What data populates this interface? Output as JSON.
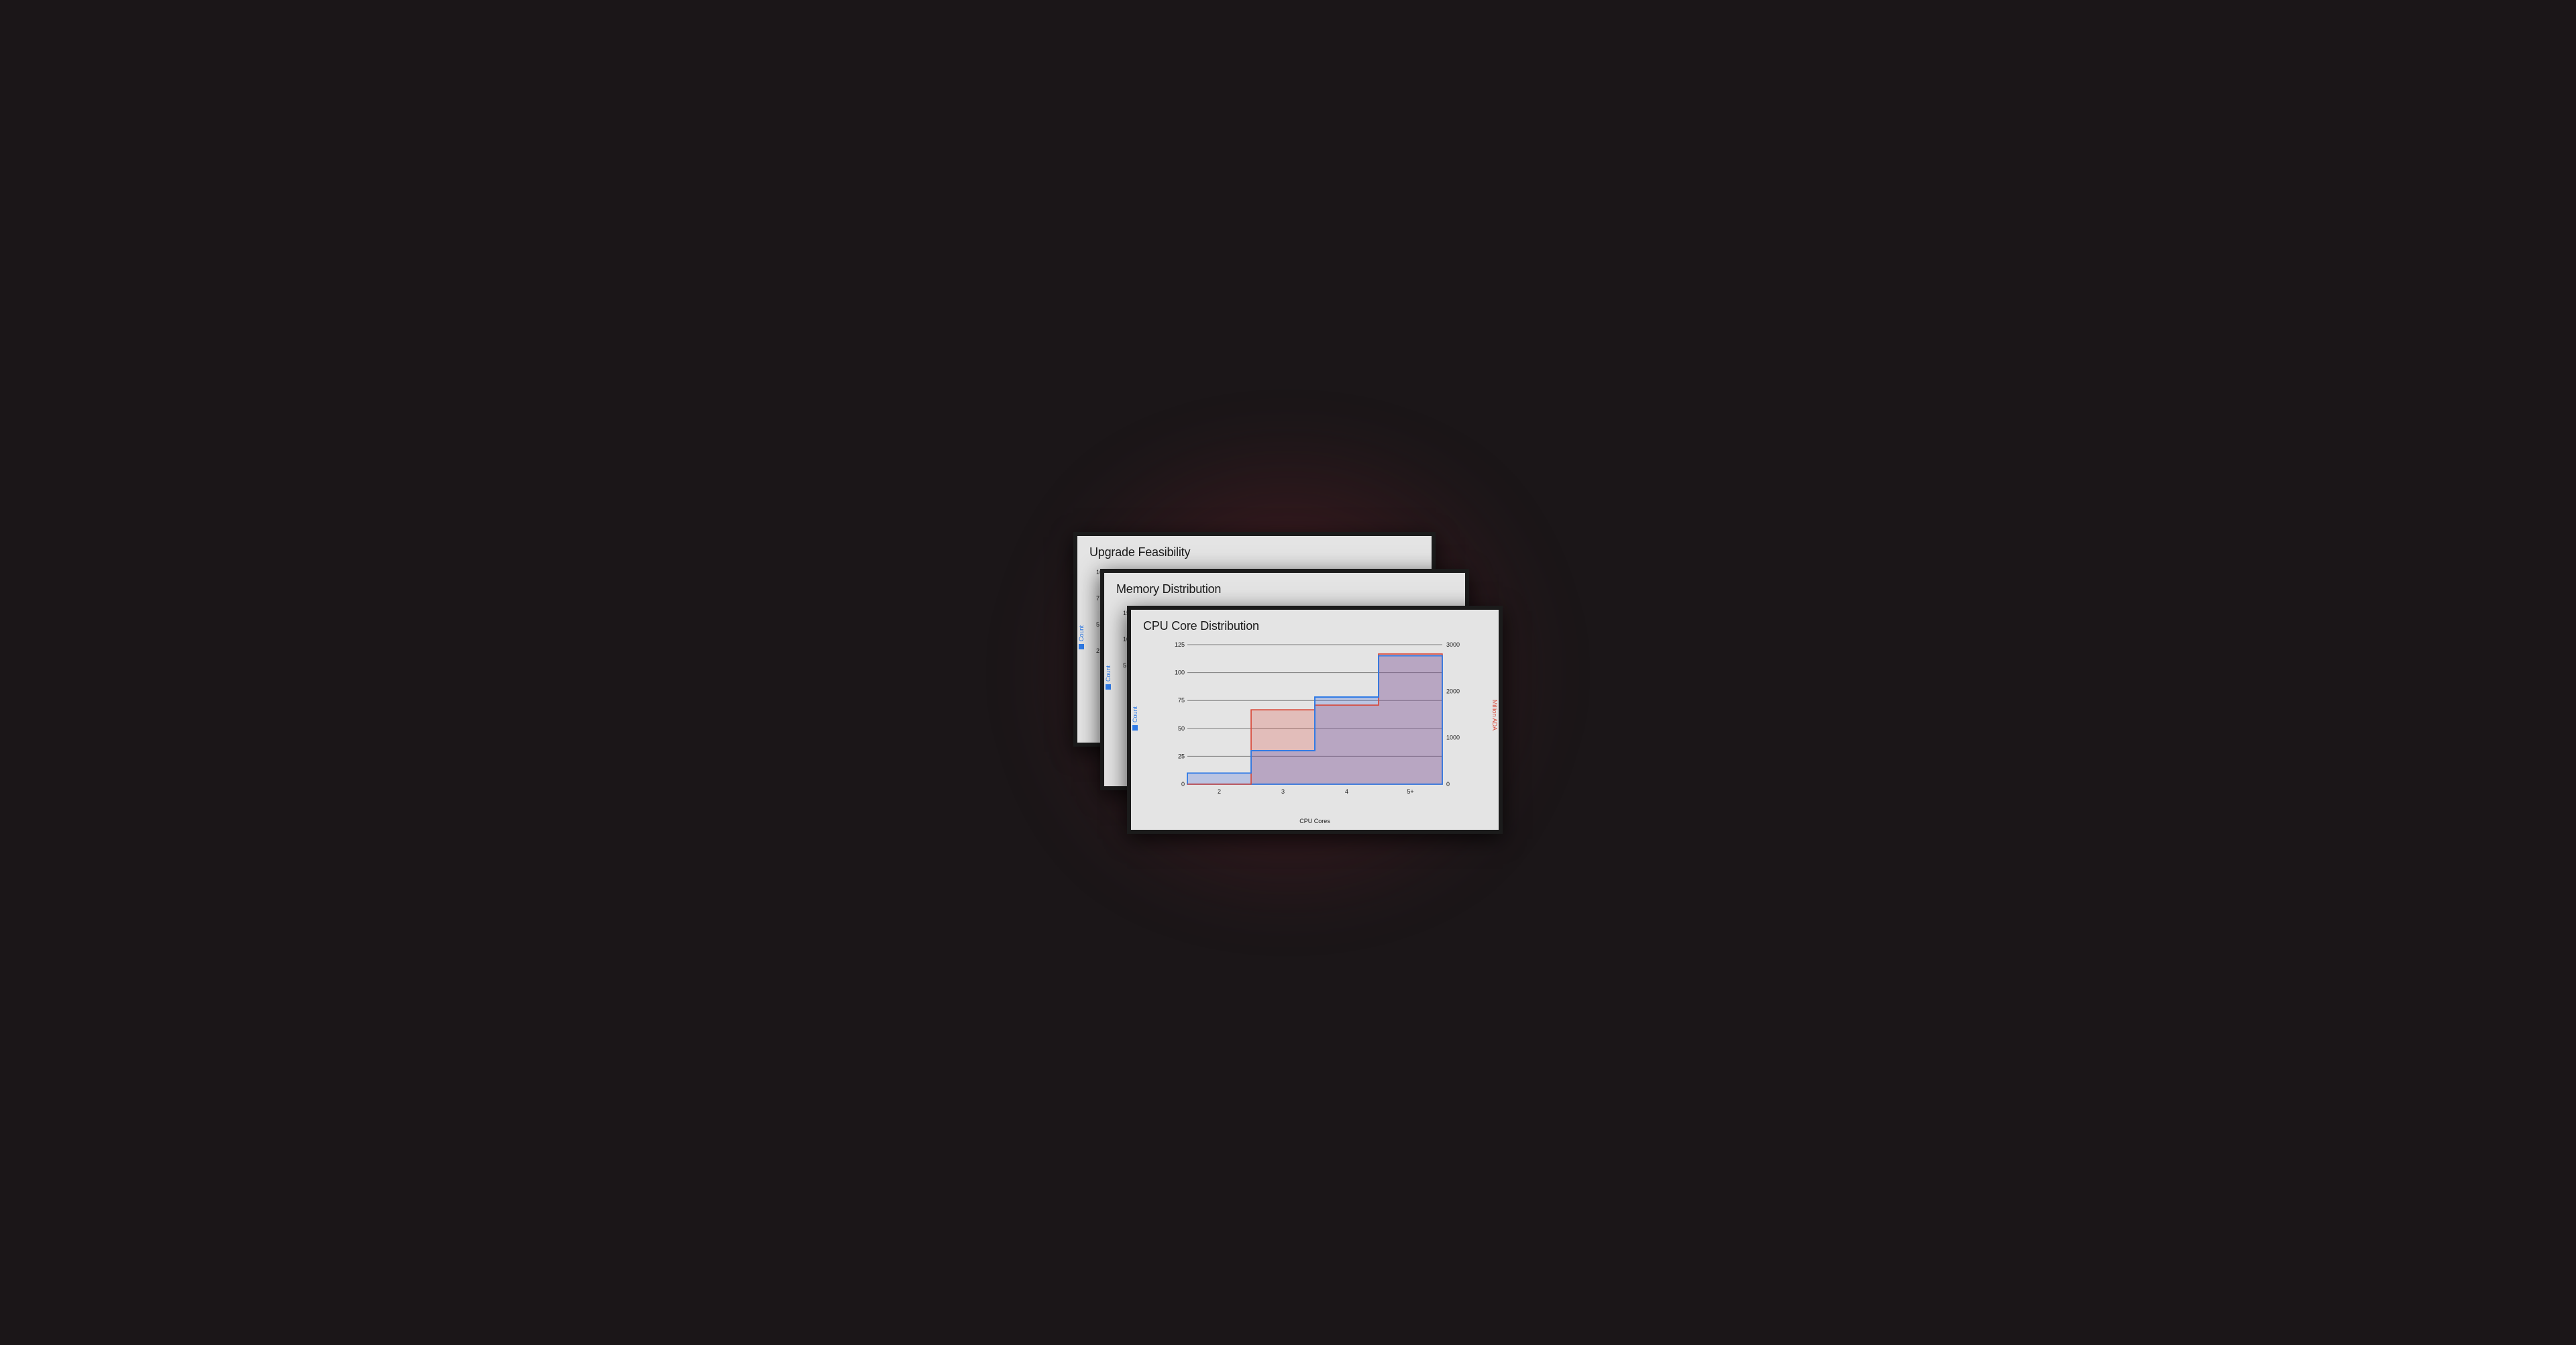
{
  "background_color": "#1b1618",
  "glow_color_inner": "#aa323c",
  "card_bg": "#e4e4e4",
  "card_border": "#1b1b1b",
  "cards": {
    "back": {
      "title": "Upgrade Feasibility",
      "legend_left": {
        "label": "Count",
        "color": "#2f7ae5"
      },
      "y_peek_ticks": [
        "10",
        "7",
        "5",
        "2"
      ]
    },
    "mid": {
      "title": "Memory Distribution",
      "legend_left": {
        "label": "Count",
        "color": "#2f7ae5"
      },
      "y_peek_ticks": [
        "15",
        "10",
        "5"
      ]
    },
    "front": {
      "title": "CPU Core Distribution",
      "xlabel": "CPU Cores",
      "legend_left": {
        "label": "Count",
        "color": "#2f7ae5"
      },
      "legend_right": {
        "label": "Million ADA",
        "color": "#d94c3d"
      },
      "chart": {
        "type": "step-area-dual-axis",
        "categories": [
          "2",
          "3",
          "4",
          "5+"
        ],
        "series_count": {
          "values": [
            10,
            30,
            78,
            115
          ],
          "ylim": [
            0,
            125
          ],
          "ytick_step": 25,
          "stroke": "#2f7ae5",
          "fill": "rgba(60,100,220,0.25)",
          "stroke_width": 1.8
        },
        "series_ada": {
          "values": [
            0,
            1600,
            1700,
            2800
          ],
          "ylim": [
            0,
            3000
          ],
          "ytick_step": 1000,
          "stroke": "#d94c3d",
          "fill": "rgba(220,70,60,0.25)",
          "stroke_width": 1.5
        },
        "grid_color": "#7d7d7d",
        "tick_fontsize": 9,
        "title_fontsize": 18
      }
    }
  }
}
